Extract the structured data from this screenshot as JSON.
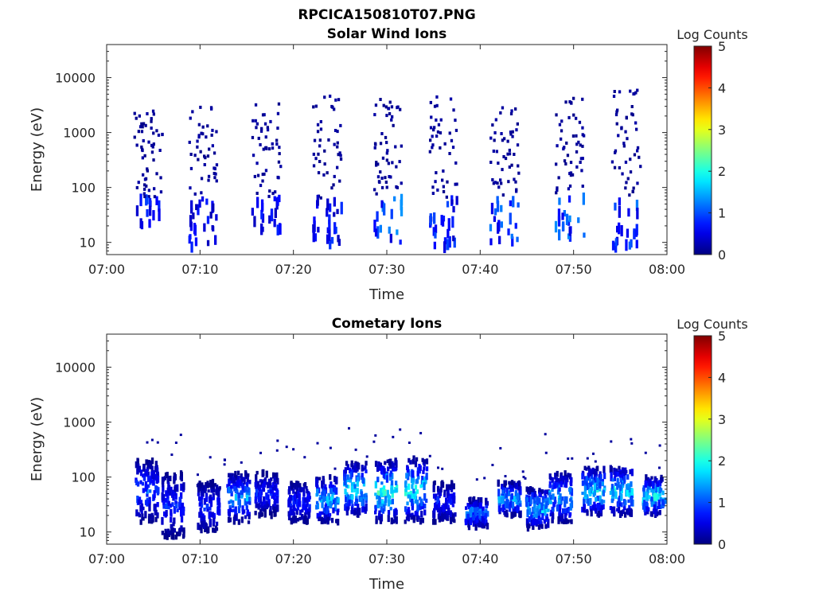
{
  "figure": {
    "title": "RPCICA150810T07.PNG"
  },
  "chart_data": [
    {
      "type": "heatmap",
      "title": "Solar Wind Ions",
      "xlabel": "Time",
      "ylabel": "Energy (eV)",
      "x_ticks": [
        "07:00",
        "07:10",
        "07:20",
        "07:30",
        "07:40",
        "07:50",
        "08:00"
      ],
      "x_range_minutes": [
        0,
        60
      ],
      "y_scale": "log",
      "y_ticks": [
        "10",
        "100",
        "1000",
        "10000"
      ],
      "y_range": [
        6,
        40000
      ],
      "colorbar": {
        "label": "Log Counts",
        "ticks": [
          "0",
          "1",
          "2",
          "3",
          "4",
          "5"
        ],
        "range": [
          0,
          5
        ],
        "colormap": "jet"
      },
      "clusters": [
        {
          "center_min": 4.3,
          "emin": 20,
          "emax": 2500,
          "peak": 1.0
        },
        {
          "center_min": 10.2,
          "emin": 8,
          "emax": 3000,
          "peak": 0.8
        },
        {
          "center_min": 17.0,
          "emin": 15,
          "emax": 4000,
          "peak": 0.8
        },
        {
          "center_min": 23.5,
          "emin": 8,
          "emax": 6000,
          "peak": 1.0
        },
        {
          "center_min": 30.0,
          "emin": 10,
          "emax": 5000,
          "peak": 1.4
        },
        {
          "center_min": 36.0,
          "emin": 8,
          "emax": 5000,
          "peak": 1.0
        },
        {
          "center_min": 42.5,
          "emin": 10,
          "emax": 3000,
          "peak": 1.3
        },
        {
          "center_min": 49.5,
          "emin": 10,
          "emax": 5000,
          "peak": 1.4
        },
        {
          "center_min": 55.5,
          "emin": 8,
          "emax": 6000,
          "peak": 1.3
        }
      ]
    },
    {
      "type": "heatmap",
      "title": "Cometary Ions",
      "xlabel": "Time",
      "ylabel": "Energy (eV)",
      "x_ticks": [
        "07:00",
        "07:10",
        "07:20",
        "07:30",
        "07:40",
        "07:50",
        "08:00"
      ],
      "x_range_minutes": [
        0,
        60
      ],
      "y_scale": "log",
      "y_ticks": [
        "10",
        "100",
        "1000",
        "10000"
      ],
      "y_range": [
        6,
        40000
      ],
      "colorbar": {
        "label": "Log Counts",
        "ticks": [
          "0",
          "1",
          "2",
          "3",
          "4",
          "5"
        ],
        "range": [
          0,
          5
        ],
        "colormap": "jet"
      },
      "clusters": [
        {
          "center_min": 4.2,
          "emin": 15,
          "emax": 200,
          "peak": 1.3
        },
        {
          "center_min": 7.0,
          "emin": 8,
          "emax": 120,
          "peak": 1.0
        },
        {
          "center_min": 10.8,
          "emin": 10,
          "emax": 80,
          "peak": 1.0
        },
        {
          "center_min": 14.0,
          "emin": 15,
          "emax": 120,
          "peak": 1.8
        },
        {
          "center_min": 17.0,
          "emin": 20,
          "emax": 120,
          "peak": 1.0
        },
        {
          "center_min": 20.5,
          "emin": 15,
          "emax": 80,
          "peak": 1.0
        },
        {
          "center_min": 23.5,
          "emin": 15,
          "emax": 100,
          "peak": 1.9
        },
        {
          "center_min": 26.5,
          "emin": 20,
          "emax": 180,
          "peak": 2.4
        },
        {
          "center_min": 29.8,
          "emin": 15,
          "emax": 200,
          "peak": 2.6
        },
        {
          "center_min": 33.0,
          "emin": 15,
          "emax": 220,
          "peak": 2.3
        },
        {
          "center_min": 36.0,
          "emin": 15,
          "emax": 80,
          "peak": 1.0
        },
        {
          "center_min": 39.5,
          "emin": 12,
          "emax": 40,
          "peak": 1.6
        },
        {
          "center_min": 43.0,
          "emin": 20,
          "emax": 80,
          "peak": 1.9
        },
        {
          "center_min": 46.0,
          "emin": 12,
          "emax": 60,
          "peak": 2.1
        },
        {
          "center_min": 48.5,
          "emin": 15,
          "emax": 120,
          "peak": 1.9
        },
        {
          "center_min": 52.0,
          "emin": 20,
          "emax": 150,
          "peak": 2.3
        },
        {
          "center_min": 55.0,
          "emin": 20,
          "emax": 150,
          "peak": 2.3
        },
        {
          "center_min": 58.5,
          "emin": 20,
          "emax": 100,
          "peak": 2.4
        }
      ]
    }
  ]
}
